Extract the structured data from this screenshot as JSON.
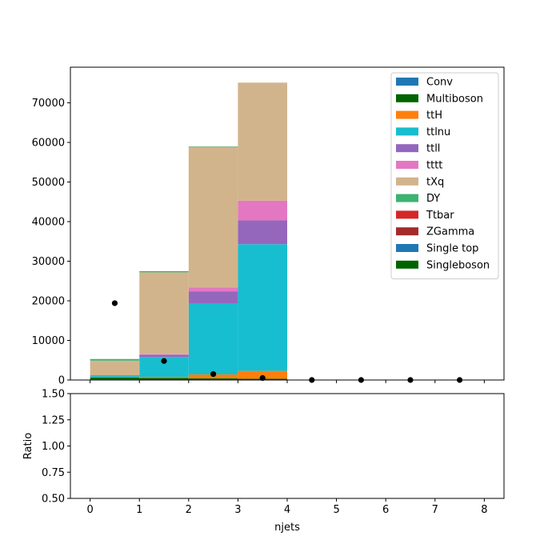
{
  "chart_data": {
    "type": "bar",
    "xlabel": "njets",
    "x_ticks": [
      "0",
      "1",
      "2",
      "3",
      "4",
      "5",
      "6",
      "7",
      "8"
    ],
    "bin_edges": [
      0,
      1,
      2,
      3,
      4,
      5,
      6,
      7,
      8
    ],
    "main_panel": {
      "ylabel": "",
      "ylim": [
        0,
        79000
      ],
      "xlim": [
        -0.4,
        8.4
      ],
      "y_ticks": [
        "0",
        "10000",
        "20000",
        "30000",
        "40000",
        "50000",
        "60000",
        "70000"
      ],
      "legend_position": "top-right",
      "stacked_series": [
        {
          "name": "Conv",
          "color": "#1f77b4",
          "values": [
            200,
            100,
            100,
            100,
            0,
            0,
            0,
            0
          ]
        },
        {
          "name": "Multiboson",
          "color": "#006400",
          "values": [
            400,
            400,
            300,
            200,
            0,
            0,
            0,
            0
          ]
        },
        {
          "name": "ttH",
          "color": "#ff7f0e",
          "values": [
            100,
            300,
            1000,
            2000,
            0,
            0,
            0,
            0
          ]
        },
        {
          "name": "ttlnu",
          "color": "#17becf",
          "values": [
            400,
            5000,
            18000,
            32000,
            0,
            0,
            0,
            0
          ]
        },
        {
          "name": "ttll",
          "color": "#9467bd",
          "values": [
            100,
            600,
            3000,
            6000,
            0,
            0,
            0,
            0
          ]
        },
        {
          "name": "tttt",
          "color": "#e377c2",
          "values": [
            0,
            100,
            1000,
            5000,
            0,
            0,
            0,
            0
          ]
        },
        {
          "name": "tXq",
          "color": "#d2b48c",
          "values": [
            3700,
            20700,
            35500,
            29800,
            0,
            0,
            0,
            0
          ]
        },
        {
          "name": "DY",
          "color": "#3cb371",
          "values": [
            400,
            300,
            100,
            0,
            0,
            0,
            0,
            0
          ]
        },
        {
          "name": "Ttbar",
          "color": "#d62728",
          "values": [
            0,
            0,
            0,
            0,
            0,
            0,
            0,
            0
          ]
        },
        {
          "name": "ZGamma",
          "color": "#a52a2a",
          "values": [
            0,
            0,
            0,
            0,
            0,
            0,
            0,
            0
          ]
        },
        {
          "name": "Single top",
          "color": "#1f77b4",
          "values": [
            0,
            0,
            0,
            0,
            0,
            0,
            0,
            0
          ]
        },
        {
          "name": "Singleboson",
          "color": "#006400",
          "values": [
            0,
            0,
            0,
            0,
            0,
            0,
            0,
            0
          ]
        }
      ],
      "data_points": {
        "x": [
          0.5,
          1.5,
          2.5,
          3.5,
          4.5,
          5.5,
          6.5,
          7.5
        ],
        "y": [
          19400,
          4800,
          1500,
          500,
          0,
          0,
          0,
          0
        ]
      }
    },
    "ratio_panel": {
      "ylabel": "Ratio",
      "ylim": [
        0.5,
        1.5
      ],
      "y_ticks": [
        "0.50",
        "0.75",
        "1.00",
        "1.25",
        "1.50"
      ]
    }
  }
}
